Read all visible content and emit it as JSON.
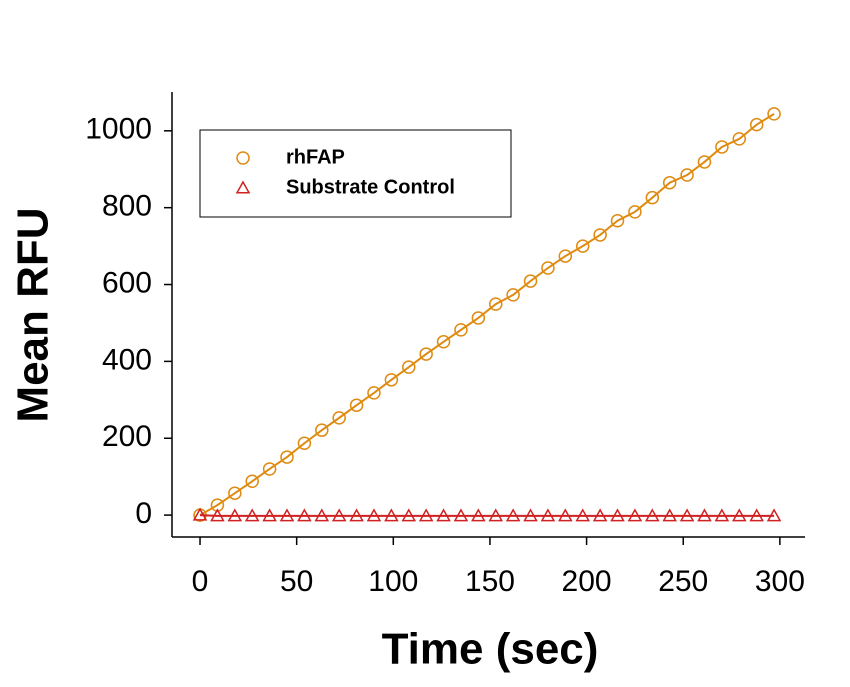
{
  "chart_data": {
    "type": "line",
    "xlabel": "Time (sec)",
    "ylabel": "Mean RFU",
    "x": [
      0,
      9,
      18,
      27,
      36,
      45,
      54,
      63,
      72,
      81,
      90,
      99,
      108,
      117,
      126,
      135,
      144,
      153,
      162,
      171,
      180,
      189,
      198,
      207,
      216,
      225,
      234,
      243,
      252,
      261,
      270,
      279,
      288,
      297
    ],
    "series": [
      {
        "name": "rhFAP",
        "color": "#df8a10",
        "marker": "circle",
        "values": [
          0,
          26,
          57,
          88,
          120,
          151,
          187,
          221,
          253,
          286,
          318,
          352,
          385,
          419,
          451,
          482,
          513,
          549,
          573,
          609,
          643,
          674,
          700,
          729,
          766,
          789,
          826,
          865,
          885,
          919,
          958,
          979,
          1016,
          1044
        ]
      },
      {
        "name": "Substrate Control",
        "color": "#d02020",
        "marker": "triangle",
        "values": [
          0,
          -2,
          -2,
          -2,
          -2,
          -2,
          -2,
          -2,
          -2,
          -2,
          -2,
          -2,
          -2,
          -2,
          -2,
          -2,
          -2,
          -2,
          -2,
          -2,
          -2,
          -2,
          -2,
          -2,
          -2,
          -2,
          -2,
          -2,
          -2,
          -2,
          -2,
          -2,
          -2,
          -2
        ]
      }
    ],
    "xlim": [
      -14.5,
      313
    ],
    "ylim": [
      -57,
      1101
    ],
    "xticks": [
      0,
      50,
      100,
      150,
      200,
      250,
      300
    ],
    "yticks": [
      0,
      200,
      400,
      600,
      800,
      1000
    ],
    "legend": "upper left"
  }
}
